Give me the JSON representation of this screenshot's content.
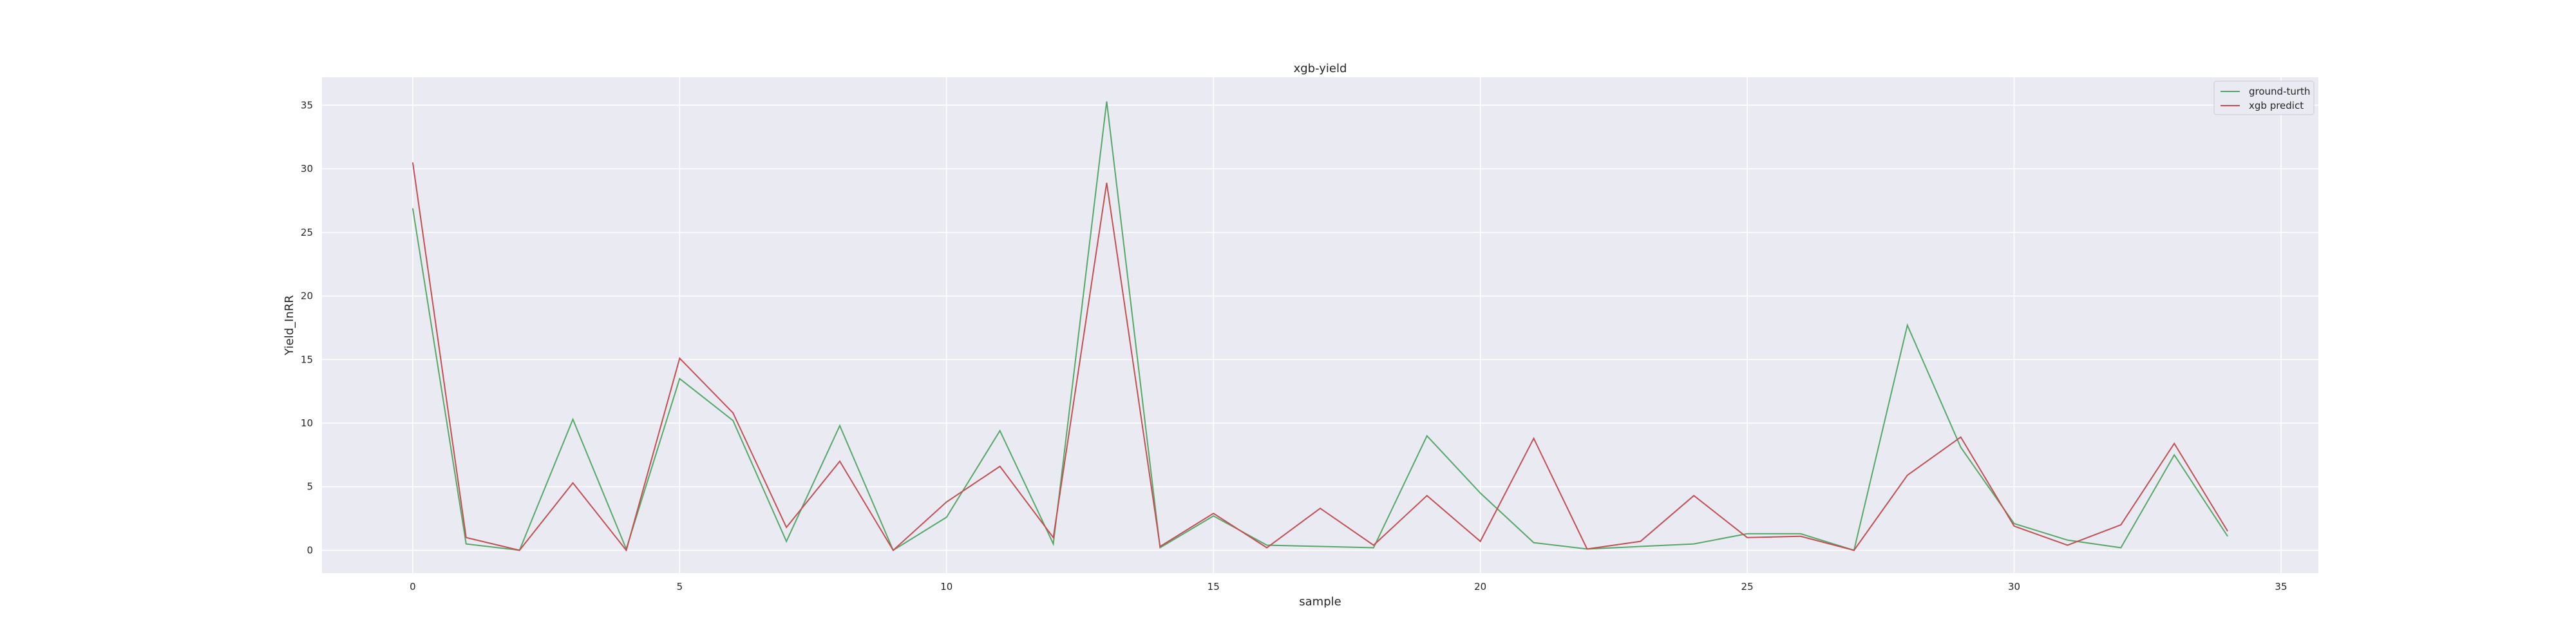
{
  "chart_data": {
    "type": "line",
    "title": "xgb-yield",
    "xlabel": "sample",
    "ylabel": "Yield_InRR",
    "xlim": [
      -1.7,
      35.7
    ],
    "ylim": [
      -1.8,
      37.2
    ],
    "xticks": [
      0,
      5,
      10,
      15,
      20,
      25,
      30,
      35
    ],
    "yticks": [
      0,
      5,
      10,
      15,
      20,
      25,
      30,
      35
    ],
    "grid": true,
    "legend_position": "top-right",
    "background": "#eaeaf2",
    "x": [
      0,
      1,
      2,
      3,
      4,
      5,
      6,
      7,
      8,
      9,
      10,
      11,
      12,
      13,
      14,
      15,
      16,
      17,
      18,
      19,
      20,
      21,
      22,
      23,
      24,
      25,
      26,
      27,
      28,
      29,
      30,
      31,
      32,
      33,
      34
    ],
    "series": [
      {
        "name": "ground-turth",
        "color": "#55a868",
        "values": [
          26.9,
          0.5,
          0.0,
          10.3,
          0.1,
          13.5,
          10.2,
          0.7,
          9.8,
          0.0,
          2.6,
          9.4,
          0.5,
          35.3,
          0.2,
          2.7,
          0.4,
          0.3,
          0.2,
          9.0,
          4.5,
          0.6,
          0.1,
          0.3,
          0.5,
          1.3,
          1.3,
          0.0,
          17.7,
          8.1,
          2.1,
          0.8,
          0.2,
          7.5,
          1.1
        ]
      },
      {
        "name": "xgb predict",
        "color": "#c44e52",
        "values": [
          30.5,
          1.0,
          0.0,
          5.3,
          0.0,
          15.1,
          10.8,
          1.8,
          7.0,
          0.0,
          3.8,
          6.6,
          1.0,
          28.9,
          0.3,
          2.9,
          0.2,
          3.3,
          0.4,
          4.3,
          0.7,
          8.8,
          0.1,
          0.7,
          4.3,
          1.0,
          1.1,
          0.0,
          5.9,
          8.9,
          1.9,
          0.4,
          2.0,
          8.4,
          1.5
        ]
      }
    ]
  }
}
